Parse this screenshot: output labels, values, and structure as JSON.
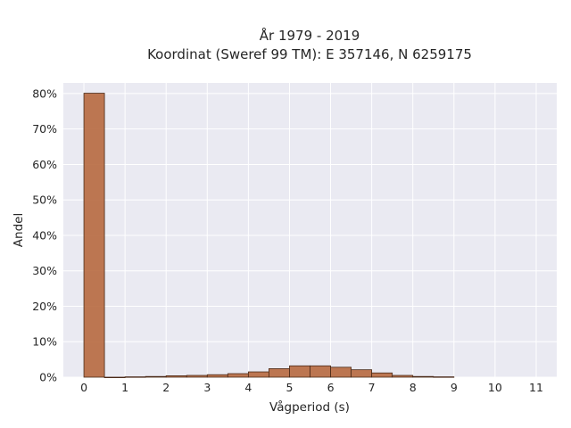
{
  "chart_data": {
    "type": "bar",
    "title": [
      "År 1979 - 2019",
      "Koordinat (Sweref 99 TM): E 357146, N 6259175"
    ],
    "xlabel": "Vågperiod (s)",
    "ylabel": "Andel",
    "xlim": [
      -0.5,
      11.5
    ],
    "ylim": [
      0,
      0.83
    ],
    "xticks": [
      0,
      1,
      2,
      3,
      4,
      5,
      6,
      7,
      8,
      9,
      10,
      11
    ],
    "xtick_labels": [
      "0",
      "1",
      "2",
      "3",
      "4",
      "5",
      "6",
      "7",
      "8",
      "9",
      "10",
      "11"
    ],
    "yticks": [
      0,
      0.1,
      0.2,
      0.3,
      0.4,
      0.5,
      0.6,
      0.7,
      0.8
    ],
    "ytick_labels": [
      "0%",
      "10%",
      "20%",
      "30%",
      "40%",
      "50%",
      "60%",
      "70%",
      "80%"
    ],
    "grid": true,
    "bin_width": 0.5,
    "bins": [
      {
        "x0": 0.0,
        "value": 0.801
      },
      {
        "x0": 0.5,
        "value": 0.0
      },
      {
        "x0": 1.0,
        "value": 0.001
      },
      {
        "x0": 1.5,
        "value": 0.002
      },
      {
        "x0": 2.0,
        "value": 0.004
      },
      {
        "x0": 2.5,
        "value": 0.005
      },
      {
        "x0": 3.0,
        "value": 0.007
      },
      {
        "x0": 3.5,
        "value": 0.01
      },
      {
        "x0": 4.0,
        "value": 0.015
      },
      {
        "x0": 4.5,
        "value": 0.024
      },
      {
        "x0": 5.0,
        "value": 0.032
      },
      {
        "x0": 5.5,
        "value": 0.032
      },
      {
        "x0": 6.0,
        "value": 0.028
      },
      {
        "x0": 6.5,
        "value": 0.021
      },
      {
        "x0": 7.0,
        "value": 0.012
      },
      {
        "x0": 7.5,
        "value": 0.005
      },
      {
        "x0": 8.0,
        "value": 0.002
      },
      {
        "x0": 8.5,
        "value": 0.001
      }
    ],
    "colors": {
      "bar": "#b5653a",
      "bar_edge": "#4a2a18",
      "plot_bg": "#eaeaf2",
      "grid": "#ffffff"
    }
  }
}
